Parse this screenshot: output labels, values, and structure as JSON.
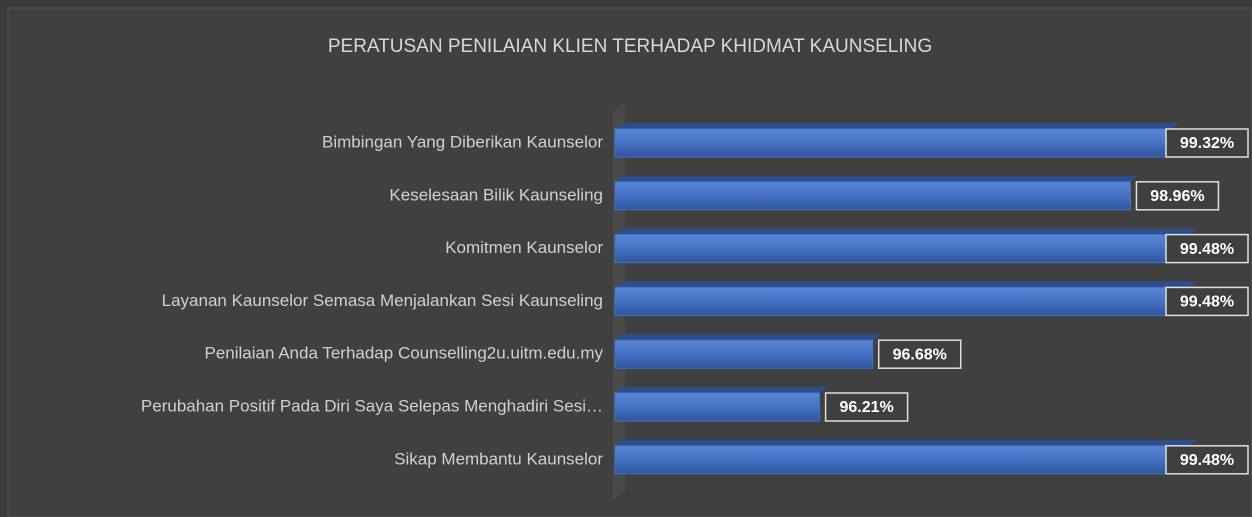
{
  "chart_data": {
    "type": "bar",
    "orientation": "horizontal",
    "title": "PERATUSAN PENILAIAN KLIEN TERHADAP KHIDMAT KAUNSELING",
    "categories": [
      "Bimbingan Yang Diberikan Kaunselor",
      "Keselesaan Bilik Kaunseling",
      "Komitmen Kaunselor",
      "Layanan Kaunselor Semasa Menjalankan Sesi Kaunseling",
      "Penilaian Anda Terhadap Counselling2u.uitm.edu.my",
      "Perubahan Positif Pada Diri Saya Selepas Menghadiri Sesi…",
      "Sikap Membantu Kaunselor"
    ],
    "values": [
      99.32,
      98.96,
      99.48,
      99.48,
      96.68,
      96.21,
      99.48
    ],
    "value_labels": [
      "99.32%",
      "98.96%",
      "99.48%",
      "99.48%",
      "96.68%",
      "96.21%",
      "99.48%"
    ],
    "color": "#4472c4",
    "xlim": [
      94.4,
      100
    ]
  }
}
